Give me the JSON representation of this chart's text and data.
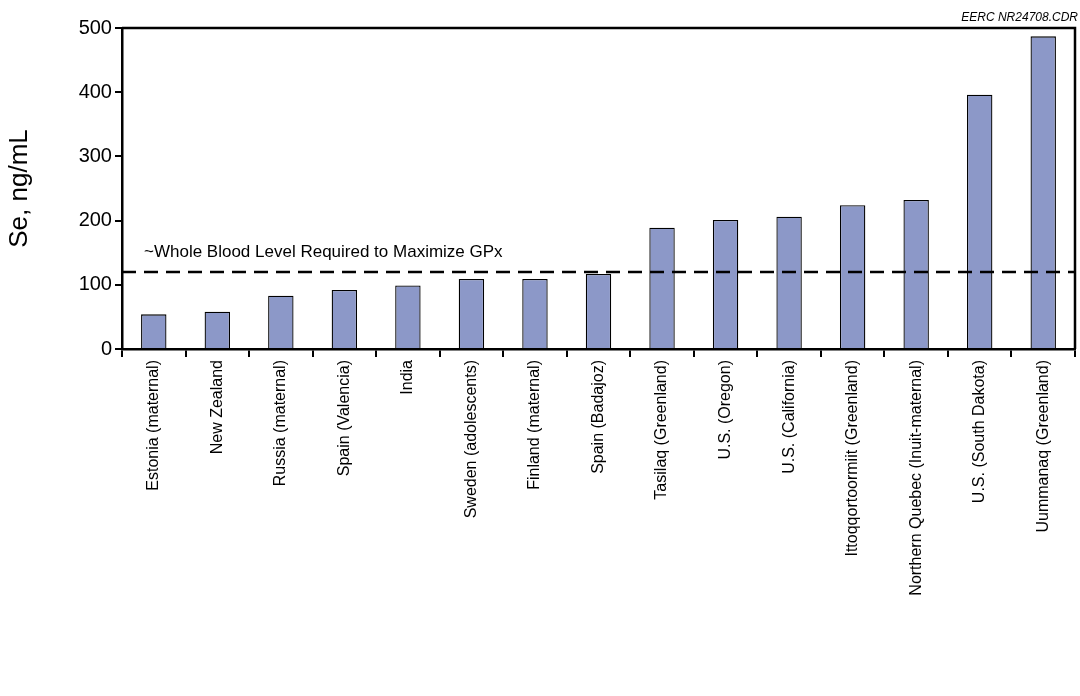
{
  "chart_data": {
    "type": "bar",
    "ylabel": "Se, ng/mL",
    "categories": [
      "Estonia (maternal)",
      "New Zealand",
      "Russia (maternal)",
      "Spain (Valencia)",
      "India",
      "Sweden (adolescents)",
      "Finland (maternal)",
      "Spain (Badajoz)",
      "Tasilaq (Greenland)",
      "U.S. (Oregon)",
      "U.S. (California)",
      "Ittoqqortoormiit (Greenland)",
      "Northern Quebec (Inuit-maternal)",
      "U.S. (South Dakota)",
      "Uummanaq (Greenland)"
    ],
    "values": [
      54,
      58,
      83,
      92,
      99,
      109,
      109,
      117,
      189,
      201,
      206,
      224,
      232,
      396,
      487
    ],
    "color": "#8c98c8",
    "ylim": [
      0,
      500
    ],
    "yticks": [
      0,
      100,
      200,
      300,
      400,
      500
    ],
    "ref_lines": [
      {
        "axis": "y",
        "value": 120,
        "label": "~Whole Blood Level Required to Maximize GPx",
        "line_style": "dashed"
      }
    ],
    "annotations": [
      "EERC NR24708.CDR"
    ],
    "grid": false,
    "legend": false
  }
}
